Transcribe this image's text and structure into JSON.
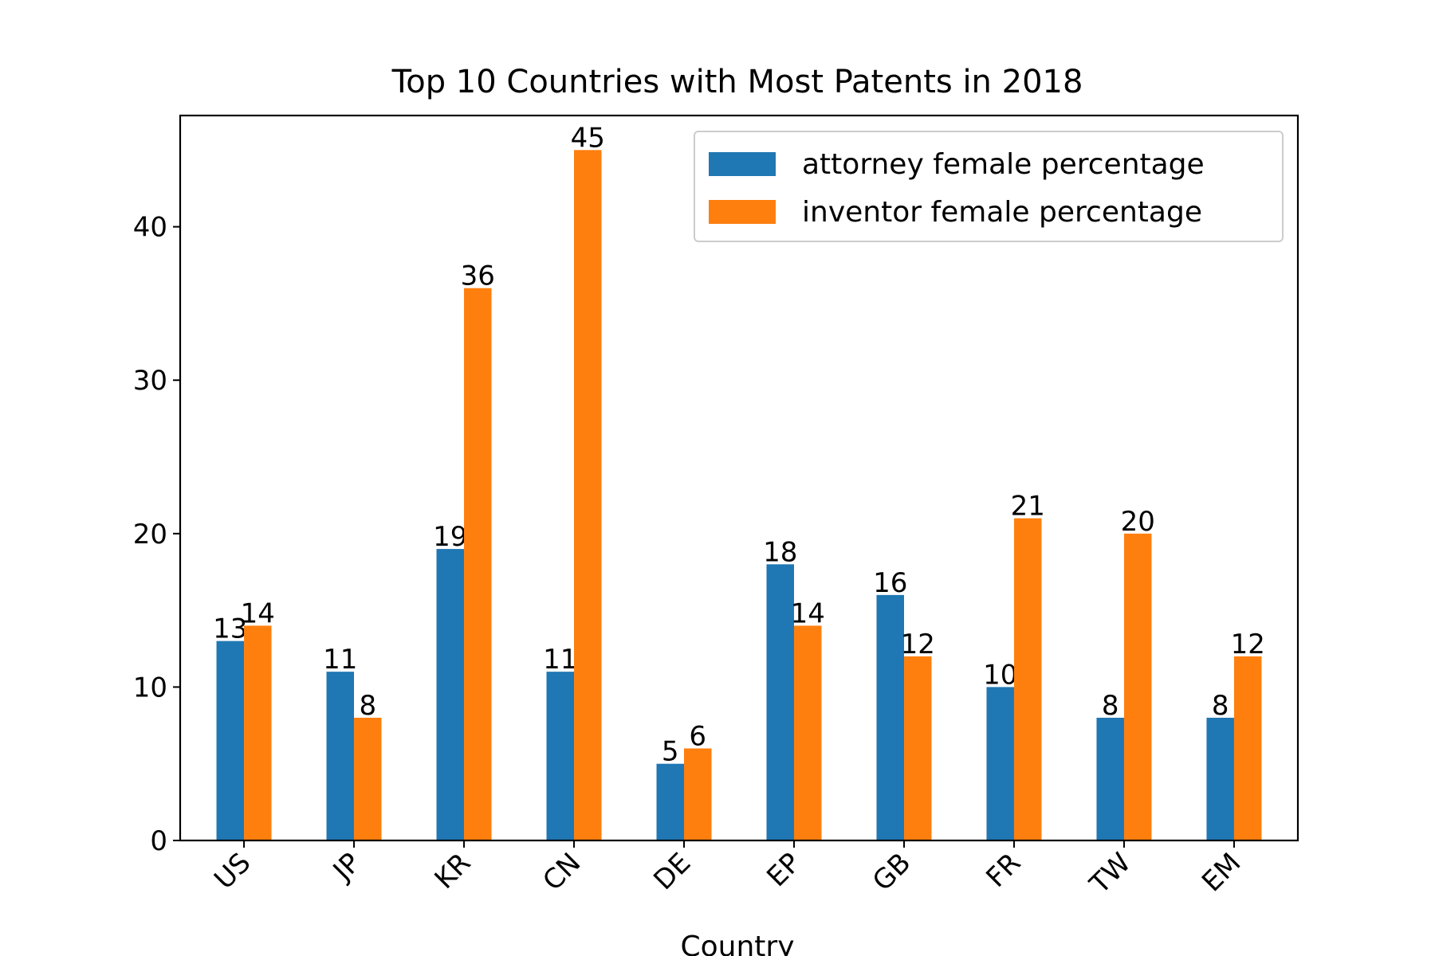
{
  "chart_data": {
    "type": "bar",
    "title": "Top 10 Countries with Most Patents in 2018",
    "xlabel": "Country",
    "ylabel": "",
    "categories": [
      "US",
      "JP",
      "KR",
      "CN",
      "DE",
      "EP",
      "GB",
      "FR",
      "TW",
      "EM"
    ],
    "series": [
      {
        "name": "attorney female percentage",
        "color": "#1f77b4",
        "values": [
          13,
          11,
          19,
          11,
          5,
          18,
          16,
          10,
          8,
          8
        ]
      },
      {
        "name": "inventor female percentage",
        "color": "#ff7f0e",
        "values": [
          14,
          8,
          36,
          45,
          6,
          14,
          12,
          21,
          20,
          12
        ]
      }
    ],
    "ylim": [
      0,
      47.25
    ],
    "yticks": [
      0,
      10,
      20,
      30,
      40
    ],
    "grid": false,
    "legend": "top-right",
    "data_labels": true
  }
}
